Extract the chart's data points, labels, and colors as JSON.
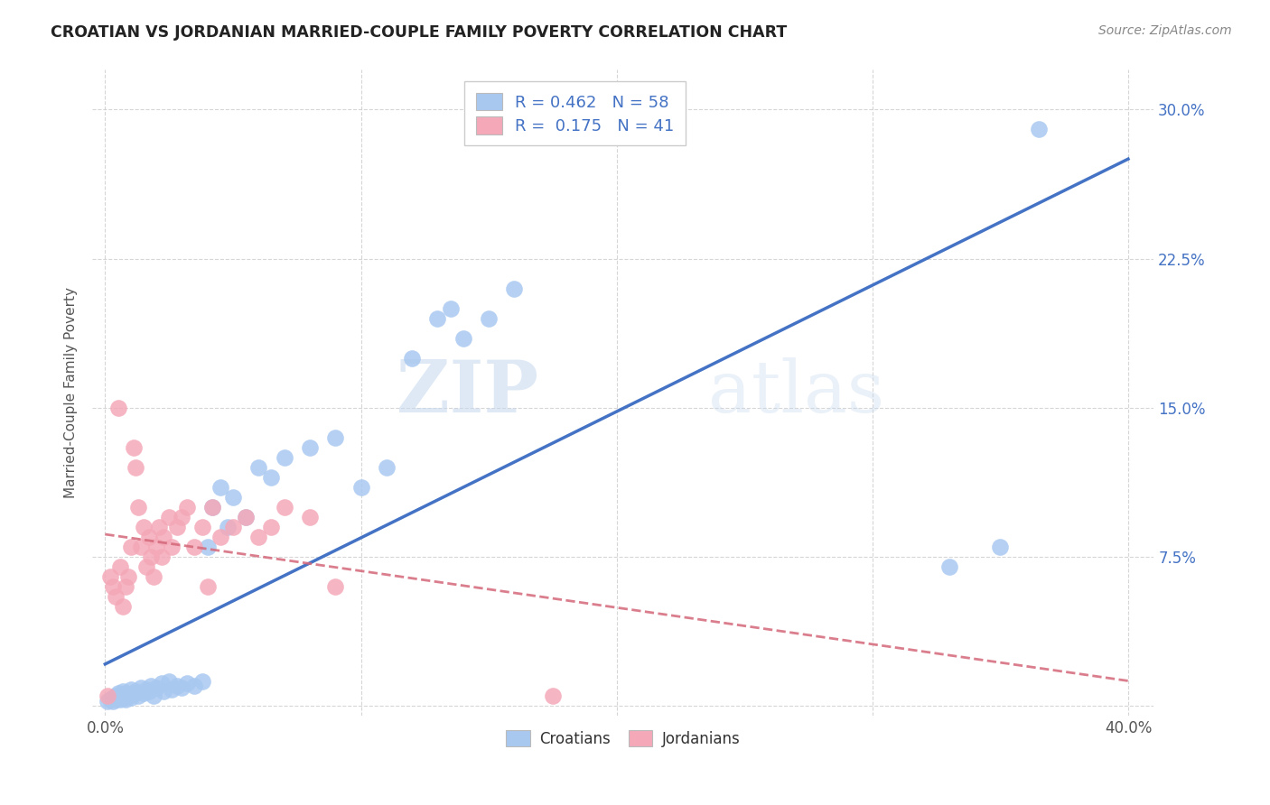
{
  "title": "CROATIAN VS JORDANIAN MARRIED-COUPLE FAMILY POVERTY CORRELATION CHART",
  "source": "Source: ZipAtlas.com",
  "ylabel": "Married-Couple Family Poverty",
  "yticks": [
    0.0,
    0.075,
    0.15,
    0.225,
    0.3
  ],
  "ytick_labels_right": [
    "",
    "7.5%",
    "15.0%",
    "22.5%",
    "30.0%"
  ],
  "xticks": [
    0.0,
    0.1,
    0.2,
    0.3,
    0.4
  ],
  "xtick_labels": [
    "0.0%",
    "",
    "",
    "",
    "40.0%"
  ],
  "xlim": [
    -0.005,
    0.41
  ],
  "ylim": [
    -0.005,
    0.32
  ],
  "watermark_zip": "ZIP",
  "watermark_atlas": "atlas",
  "legend_R_croatian": "0.462",
  "legend_N_croatian": "58",
  "legend_R_jordanian": "0.175",
  "legend_N_jordanian": "41",
  "croatian_color": "#a8c8f0",
  "jordanian_color": "#f4a8b8",
  "line_croatian_color": "#4472c4",
  "line_jordanian_color": "#d4687a",
  "croatian_scatter": [
    [
      0.001,
      0.002
    ],
    [
      0.002,
      0.003
    ],
    [
      0.003,
      0.004
    ],
    [
      0.003,
      0.002
    ],
    [
      0.004,
      0.005
    ],
    [
      0.004,
      0.003
    ],
    [
      0.005,
      0.006
    ],
    [
      0.005,
      0.004
    ],
    [
      0.006,
      0.005
    ],
    [
      0.006,
      0.003
    ],
    [
      0.007,
      0.007
    ],
    [
      0.007,
      0.004
    ],
    [
      0.008,
      0.006
    ],
    [
      0.008,
      0.003
    ],
    [
      0.009,
      0.005
    ],
    [
      0.01,
      0.008
    ],
    [
      0.01,
      0.004
    ],
    [
      0.011,
      0.006
    ],
    [
      0.012,
      0.007
    ],
    [
      0.013,
      0.005
    ],
    [
      0.014,
      0.009
    ],
    [
      0.015,
      0.006
    ],
    [
      0.016,
      0.008
    ],
    [
      0.017,
      0.007
    ],
    [
      0.018,
      0.01
    ],
    [
      0.019,
      0.005
    ],
    [
      0.02,
      0.009
    ],
    [
      0.022,
      0.011
    ],
    [
      0.023,
      0.007
    ],
    [
      0.025,
      0.012
    ],
    [
      0.026,
      0.008
    ],
    [
      0.028,
      0.01
    ],
    [
      0.03,
      0.009
    ],
    [
      0.032,
      0.011
    ],
    [
      0.035,
      0.01
    ],
    [
      0.038,
      0.012
    ],
    [
      0.04,
      0.08
    ],
    [
      0.042,
      0.1
    ],
    [
      0.045,
      0.11
    ],
    [
      0.048,
      0.09
    ],
    [
      0.05,
      0.105
    ],
    [
      0.055,
      0.095
    ],
    [
      0.06,
      0.12
    ],
    [
      0.065,
      0.115
    ],
    [
      0.07,
      0.125
    ],
    [
      0.08,
      0.13
    ],
    [
      0.09,
      0.135
    ],
    [
      0.1,
      0.11
    ],
    [
      0.11,
      0.12
    ],
    [
      0.12,
      0.175
    ],
    [
      0.13,
      0.195
    ],
    [
      0.135,
      0.2
    ],
    [
      0.14,
      0.185
    ],
    [
      0.15,
      0.195
    ],
    [
      0.16,
      0.21
    ],
    [
      0.33,
      0.07
    ],
    [
      0.35,
      0.08
    ],
    [
      0.365,
      0.29
    ]
  ],
  "jordanian_scatter": [
    [
      0.001,
      0.005
    ],
    [
      0.002,
      0.065
    ],
    [
      0.003,
      0.06
    ],
    [
      0.004,
      0.055
    ],
    [
      0.005,
      0.15
    ],
    [
      0.006,
      0.07
    ],
    [
      0.007,
      0.05
    ],
    [
      0.008,
      0.06
    ],
    [
      0.009,
      0.065
    ],
    [
      0.01,
      0.08
    ],
    [
      0.011,
      0.13
    ],
    [
      0.012,
      0.12
    ],
    [
      0.013,
      0.1
    ],
    [
      0.014,
      0.08
    ],
    [
      0.015,
      0.09
    ],
    [
      0.016,
      0.07
    ],
    [
      0.017,
      0.085
    ],
    [
      0.018,
      0.075
    ],
    [
      0.019,
      0.065
    ],
    [
      0.02,
      0.08
    ],
    [
      0.021,
      0.09
    ],
    [
      0.022,
      0.075
    ],
    [
      0.023,
      0.085
    ],
    [
      0.025,
      0.095
    ],
    [
      0.026,
      0.08
    ],
    [
      0.028,
      0.09
    ],
    [
      0.03,
      0.095
    ],
    [
      0.032,
      0.1
    ],
    [
      0.035,
      0.08
    ],
    [
      0.038,
      0.09
    ],
    [
      0.04,
      0.06
    ],
    [
      0.042,
      0.1
    ],
    [
      0.045,
      0.085
    ],
    [
      0.05,
      0.09
    ],
    [
      0.055,
      0.095
    ],
    [
      0.06,
      0.085
    ],
    [
      0.065,
      0.09
    ],
    [
      0.07,
      0.1
    ],
    [
      0.08,
      0.095
    ],
    [
      0.09,
      0.06
    ],
    [
      0.175,
      0.005
    ]
  ]
}
